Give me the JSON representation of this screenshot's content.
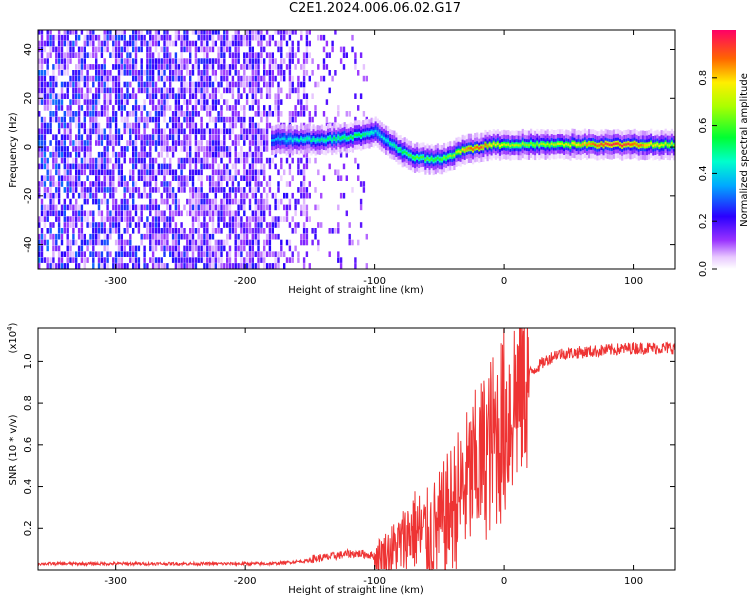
{
  "figure_title": "C2E1.2024.006.06.02.G17",
  "chart_data": [
    {
      "type": "heatmap",
      "title": "C2E1.2024.006.06.02.G17",
      "xlabel": "Height of straight line (km)",
      "ylabel": "Frequency (Hz)",
      "xlim": [
        -360,
        132
      ],
      "ylim": [
        -50,
        48
      ],
      "x_ticks": [
        "-300",
        "-200",
        "-100",
        "0",
        "100"
      ],
      "y_ticks": [
        "-40",
        "-20",
        "0",
        "20",
        "40"
      ],
      "colorbar": {
        "label": "Normalized spectral amplitude",
        "range": [
          0,
          1
        ],
        "ticks": [
          "0.0",
          "0.2",
          "0.4",
          "0.6",
          "0.8"
        ]
      },
      "noise_region_x": [
        -360,
        -105
      ],
      "signal_track": {
        "x": [
          -180,
          -160,
          -140,
          -120,
          -110,
          -100,
          -90,
          -80,
          -70,
          -60,
          -50,
          -40,
          -30,
          -20,
          -10,
          0,
          20,
          40,
          60,
          80,
          100,
          132
        ],
        "freq": [
          3,
          3,
          3,
          4,
          5,
          6,
          2,
          -2,
          -4,
          -5,
          -5,
          -3,
          -1,
          0,
          1,
          1,
          1,
          1,
          1,
          1,
          1,
          1
        ],
        "amplitude": [
          0.35,
          0.45,
          0.5,
          0.55,
          0.55,
          0.4,
          0.45,
          0.55,
          0.6,
          0.6,
          0.6,
          0.65,
          0.85,
          0.9,
          0.8,
          0.7,
          0.65,
          0.7,
          0.8,
          0.95,
          0.9,
          0.65
        ]
      }
    },
    {
      "type": "line",
      "xlabel": "Height of straight line (km)",
      "ylabel": "SNR (10 * v/v)",
      "y_multiplier": "(x10^4)",
      "y_multiplier_base": "(x10",
      "y_multiplier_exp": "4",
      "y_multiplier_close": ")",
      "xlim": [
        -360,
        132
      ],
      "ylim": [
        0,
        1.16
      ],
      "x_ticks": [
        "-300",
        "-200",
        "-100",
        "0",
        "100"
      ],
      "y_ticks": [
        "0.2",
        "0.4",
        "0.6",
        "0.8",
        "1.0"
      ],
      "series": [
        {
          "color": "#ee3333",
          "x": [
            -360,
            -300,
            -250,
            -200,
            -180,
            -160,
            -140,
            -120,
            -110,
            -100,
            -90,
            -80,
            -70,
            -60,
            -50,
            -40,
            -30,
            -20,
            -10,
            0,
            10,
            20,
            30,
            40,
            60,
            80,
            100,
            120,
            132
          ],
          "y": [
            0.03,
            0.03,
            0.03,
            0.03,
            0.03,
            0.04,
            0.05,
            0.07,
            0.07,
            0.06,
            0.08,
            0.12,
            0.2,
            0.15,
            0.2,
            0.3,
            0.4,
            0.5,
            0.6,
            0.7,
            0.85,
            0.95,
            1.0,
            1.04,
            1.05,
            1.06,
            1.07,
            1.07,
            1.07
          ]
        }
      ]
    }
  ]
}
